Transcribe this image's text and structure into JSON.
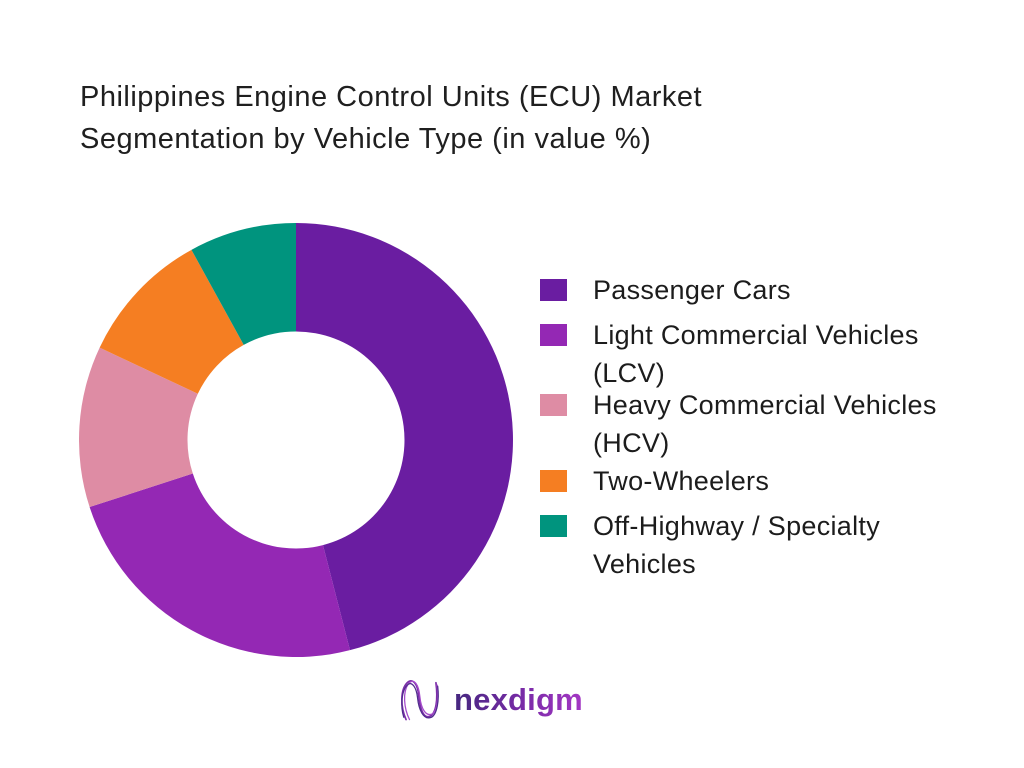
{
  "title": {
    "line1": "Philippines Engine Control Units (ECU) Market",
    "line2": "Segmentation by Vehicle Type (in value %)"
  },
  "chart_data": {
    "type": "pie",
    "subtype": "donut",
    "title": "Philippines Engine Control Units (ECU) Market Segmentation by Vehicle Type (in value %)",
    "unit": "% of market value",
    "start_angle_deg": 0,
    "direction": "clockwise",
    "inner_radius_ratio": 0.5,
    "legend_position": "right",
    "data_labels_shown": false,
    "segments": [
      {
        "label": "Passenger Cars",
        "value": 46,
        "color": "#6A1DA1"
      },
      {
        "label": "Light Commercial Vehicles (LCV)",
        "value": 24,
        "color": "#9428B4"
      },
      {
        "label": "Heavy Commercial Vehicles (HCV)",
        "value": 12,
        "color": "#DE8CA4"
      },
      {
        "label": "Two-Wheelers",
        "value": 10,
        "color": "#F57E22"
      },
      {
        "label": "Off-Highway / Specialty Vehicles",
        "value": 8,
        "color": "#00947E"
      }
    ]
  },
  "logo": {
    "text": "nexdigm",
    "mark": "nexdigm-wave-n-mark",
    "gradient_start": "#45277F",
    "gradient_end": "#A437C4"
  }
}
